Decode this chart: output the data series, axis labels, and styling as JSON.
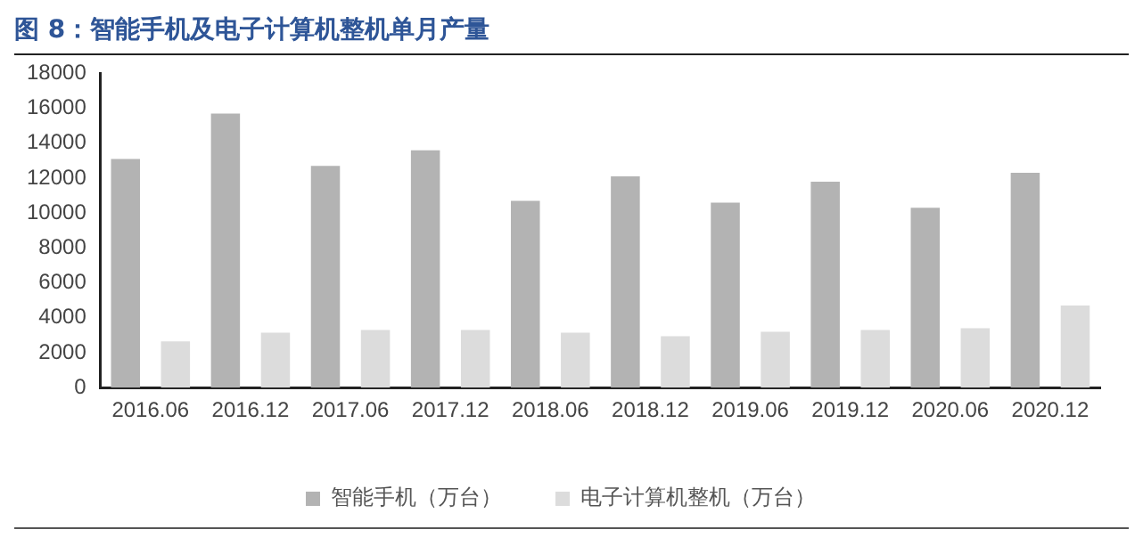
{
  "chart_data": {
    "type": "bar",
    "title": "图 8：智能手机及电子计算机整机单月产量",
    "categories": [
      "2016.06",
      "2016.12",
      "2017.06",
      "2017.12",
      "2018.06",
      "2018.12",
      "2019.06",
      "2019.12",
      "2020.06",
      "2020.12"
    ],
    "series": [
      {
        "name": "智能手机（万台）",
        "color": "#b3b3b3",
        "values": [
          13100,
          15700,
          12700,
          13600,
          10700,
          12100,
          10600,
          11800,
          10300,
          12300
        ]
      },
      {
        "name": "电子计算机整机（万台）",
        "color": "#dcdcdc",
        "values": [
          2650,
          3150,
          3300,
          3300,
          3150,
          2950,
          3200,
          3300,
          3400,
          4700
        ]
      }
    ],
    "ylim": [
      0,
      18000
    ],
    "yticks": [
      0,
      2000,
      4000,
      6000,
      8000,
      10000,
      12000,
      14000,
      16000,
      18000
    ],
    "grid": false,
    "legend": "bottom"
  }
}
